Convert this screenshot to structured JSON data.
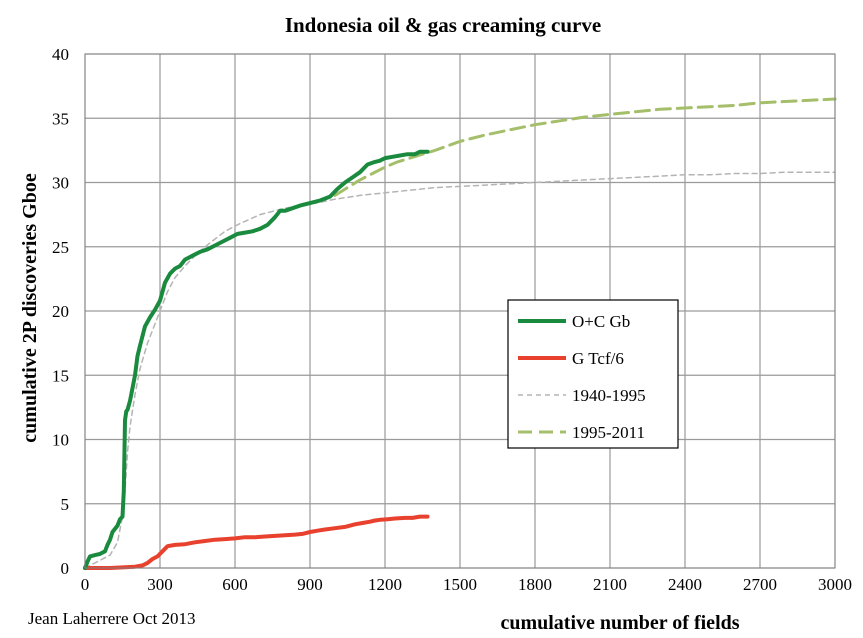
{
  "chart_data": {
    "type": "line",
    "title": "Indonesia oil & gas creaming curve",
    "xlabel": "cumulative number of fields",
    "ylabel": "cumulative 2P discoveries Gboe",
    "xlim": [
      0,
      3000
    ],
    "ylim": [
      0,
      40
    ],
    "xticks": [
      "0",
      "300",
      "600",
      "900",
      "1200",
      "1500",
      "1800",
      "2100",
      "2400",
      "2700",
      "3000"
    ],
    "yticks": [
      "0",
      "5",
      "10",
      "15",
      "20",
      "25",
      "30",
      "35",
      "40"
    ],
    "grid": true,
    "legend_position": "right-middle",
    "credit": "Jean Laherrere Oct 2013",
    "series": [
      {
        "name": "O+C Gb",
        "color": "#1a8a3e",
        "style": "solid-thick",
        "x": [
          0,
          10,
          20,
          40,
          60,
          80,
          90,
          100,
          110,
          130,
          140,
          150,
          155,
          160,
          165,
          170,
          180,
          190,
          200,
          210,
          220,
          240,
          260,
          280,
          300,
          320,
          340,
          360,
          380,
          400,
          430,
          460,
          490,
          520,
          550,
          580,
          610,
          640,
          670,
          700,
          730,
          760,
          780,
          800,
          830,
          860,
          900,
          940,
          980,
          1010,
          1040,
          1070,
          1100,
          1130,
          1160,
          1180,
          1200,
          1230,
          1260,
          1290,
          1320,
          1340,
          1370
        ],
        "y": [
          0,
          0.5,
          0.9,
          1.0,
          1.1,
          1.3,
          1.8,
          2.2,
          2.8,
          3.3,
          3.8,
          4.0,
          6.0,
          11.5,
          12.2,
          12.3,
          13.0,
          14.0,
          15.0,
          16.5,
          17.3,
          18.8,
          19.5,
          20.1,
          20.8,
          22.2,
          22.9,
          23.3,
          23.5,
          24.0,
          24.3,
          24.6,
          24.8,
          25.1,
          25.4,
          25.7,
          26.0,
          26.1,
          26.2,
          26.4,
          26.7,
          27.3,
          27.8,
          27.8,
          28.0,
          28.2,
          28.4,
          28.6,
          28.9,
          29.5,
          30.0,
          30.4,
          30.8,
          31.4,
          31.6,
          31.7,
          31.9,
          32.0,
          32.1,
          32.2,
          32.2,
          32.4,
          32.4
        ]
      },
      {
        "name": "G Tcf/6",
        "color": "#e8412e",
        "style": "solid-thick",
        "x": [
          0,
          100,
          150,
          200,
          230,
          250,
          270,
          290,
          310,
          330,
          360,
          400,
          440,
          480,
          520,
          560,
          600,
          640,
          680,
          720,
          760,
          800,
          840,
          870,
          900,
          930,
          960,
          1000,
          1040,
          1080,
          1110,
          1140,
          1160,
          1180,
          1210,
          1240,
          1280,
          1310,
          1340,
          1370
        ],
        "y": [
          0,
          0,
          0.05,
          0.1,
          0.2,
          0.4,
          0.7,
          0.9,
          1.3,
          1.7,
          1.8,
          1.85,
          2.0,
          2.1,
          2.2,
          2.25,
          2.3,
          2.4,
          2.4,
          2.45,
          2.5,
          2.55,
          2.6,
          2.65,
          2.8,
          2.9,
          3.0,
          3.1,
          3.2,
          3.4,
          3.5,
          3.6,
          3.7,
          3.75,
          3.8,
          3.85,
          3.9,
          3.9,
          4.0,
          4.0
        ]
      },
      {
        "name": "1940-1995",
        "color": "#b4b4b4",
        "style": "dashed-thin",
        "x": [
          0,
          50,
          100,
          130,
          150,
          160,
          170,
          180,
          200,
          220,
          250,
          280,
          300,
          330,
          360,
          400,
          450,
          500,
          560,
          620,
          700,
          800,
          900,
          1000,
          1100,
          1200,
          1300,
          1400,
          1500,
          1600,
          1700,
          1800,
          1900,
          2000,
          2100,
          2200,
          2300,
          2400,
          2500,
          2600,
          2700,
          2800,
          2900,
          3000
        ],
        "y": [
          0,
          0.5,
          1.0,
          2.0,
          4.0,
          6.0,
          9.0,
          11.0,
          13.5,
          15.5,
          17.5,
          19.0,
          20.0,
          21.5,
          22.6,
          23.5,
          24.5,
          25.3,
          26.2,
          26.8,
          27.5,
          28.0,
          28.3,
          28.7,
          29.0,
          29.2,
          29.4,
          29.6,
          29.7,
          29.8,
          29.9,
          30.0,
          30.1,
          30.2,
          30.3,
          30.4,
          30.5,
          30.6,
          30.6,
          30.7,
          30.7,
          30.8,
          30.8,
          30.8
        ]
      },
      {
        "name": "1995-2011",
        "color": "#a4be6a",
        "style": "dashed-thick",
        "x": [
          1000,
          1050,
          1100,
          1150,
          1200,
          1250,
          1300,
          1350,
          1400,
          1500,
          1600,
          1700,
          1800,
          1900,
          2000,
          2100,
          2200,
          2300,
          2400,
          2500,
          2600,
          2700,
          2800,
          2900,
          3000
        ],
        "y": [
          29.0,
          29.6,
          30.2,
          30.7,
          31.2,
          31.6,
          31.9,
          32.2,
          32.5,
          33.2,
          33.7,
          34.1,
          34.5,
          34.8,
          35.1,
          35.3,
          35.5,
          35.7,
          35.8,
          35.9,
          36.0,
          36.2,
          36.3,
          36.4,
          36.5
        ]
      }
    ]
  }
}
